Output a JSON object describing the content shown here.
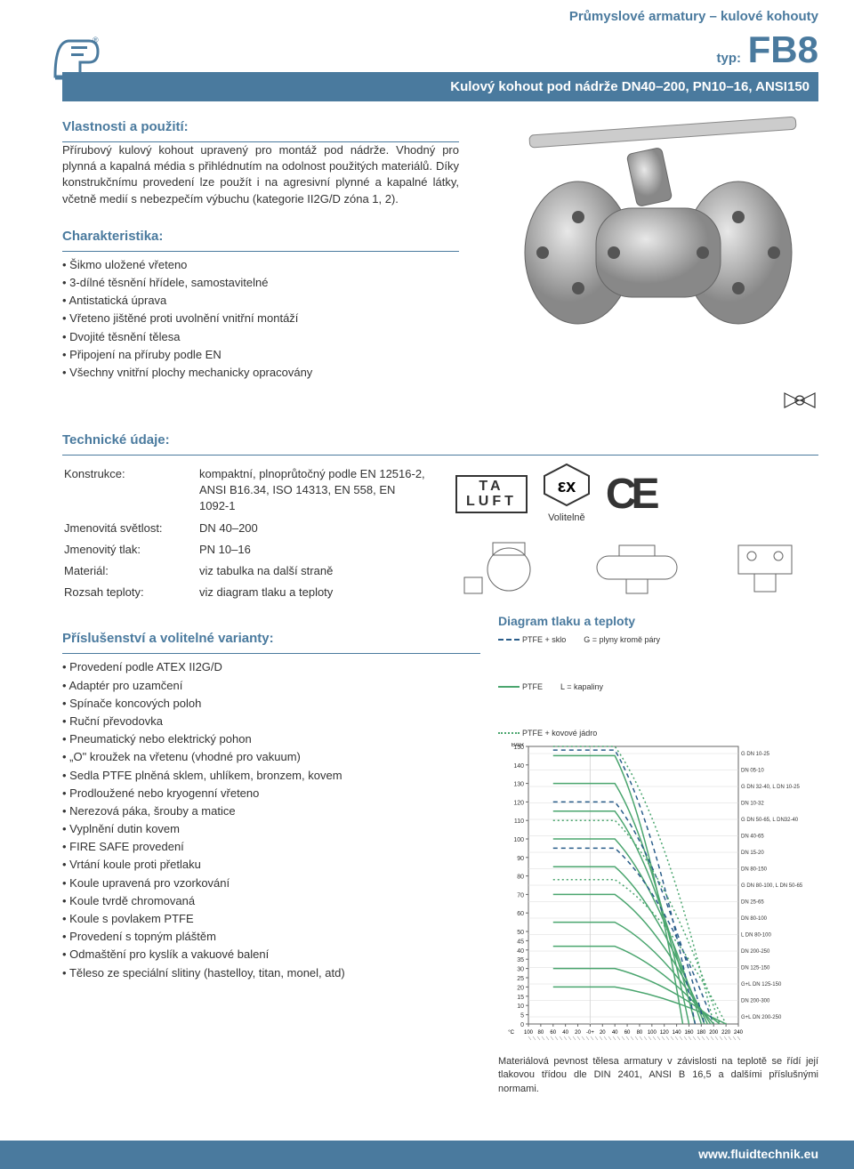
{
  "header": {
    "category": "Průmyslové armatury – kulové kohouty",
    "typ_label": "typ:",
    "typ_code": "FB8",
    "bar_text": "Kulový kohout pod nádrže DN40–200, PN10–16, ANSI150"
  },
  "properties": {
    "heading": "Vlastnosti a použití:",
    "body": "Přírubový kulový kohout upravený pro montáž pod nádrže. Vhodný pro plynná a kapalná média s přihlédnutím na odolnost použitých materiálů. Díky konstrukčnímu provedení lze použít i na agresivní plynné a kapalné látky, včetně medií s nebezpečím výbuchu (kategorie II2G/D zóna 1, 2)."
  },
  "characteristics": {
    "heading": "Charakteristika:",
    "items": [
      "Šikmo uložené vřeteno",
      "3-dílné těsnění hřídele, samostavitelné",
      "Antistatická úprava",
      "Vřeteno jištěné proti uvolnění vnitřní montáží",
      "Dvojité těsnění tělesa",
      "Připojení na příruby podle EN",
      "Všechny vnitřní plochy mechanicky opracovány"
    ]
  },
  "technical": {
    "heading": "Technické údaje:",
    "rows": [
      {
        "label": "Konstrukce:",
        "value": "kompaktní, plnoprůtočný podle EN 12516-2, ANSI B16.34, ISO 14313, EN 558, EN 1092-1"
      },
      {
        "label": "Jmenovitá světlost:",
        "value": "DN 40–200"
      },
      {
        "label": "Jmenovitý tlak:",
        "value": "PN 10–16"
      },
      {
        "label": "Materiál:",
        "value": "viz tabulka na další straně"
      },
      {
        "label": "Rozsah teploty:",
        "value": "viz diagram tlaku a teploty"
      }
    ],
    "ta_luft_line1": "TA",
    "ta_luft_line2": "LUFT",
    "volitelne": "Volitelně"
  },
  "accessories": {
    "heading": "Příslušenství a volitelné varianty:",
    "items": [
      "Provedení podle ATEX II2G/D",
      "Adaptér pro uzamčení",
      "Spínače koncových poloh",
      "Ruční převodovka",
      "Pneumatický nebo elektrický pohon",
      "„O\" kroužek na vřetenu (vhodné pro vakuum)",
      "Sedla PTFE plněná sklem, uhlíkem, bronzem, kovem",
      "Prodloužené nebo kryogenní vřeteno",
      "Nerezová páka, šrouby a matice",
      "Vyplnění dutin kovem",
      "FIRE SAFE provedení",
      "Vrtání koule proti přetlaku",
      "Koule upravená pro vzorkování",
      "Koule tvrdě chromovaná",
      "Koule s povlakem PTFE",
      "Provedení s topným pláštěm",
      "Odmaštění pro kyslík a vakuové balení",
      "Těleso ze speciální slitiny (hastelloy, titan, monel, atd)"
    ]
  },
  "chart": {
    "heading": "Diagram tlaku a teploty",
    "legend": {
      "ptfe_sklo": "PTFE + sklo",
      "ptfe": "PTFE",
      "ptfe_kov": "PTFE + kovové jádro",
      "g": "G = plyny kromě páry",
      "l": "L = kapaliny"
    },
    "y_label": "BAR",
    "y_ticks": [
      150,
      140,
      130,
      120,
      110,
      100,
      90,
      80,
      70,
      60,
      50,
      45,
      40,
      35,
      30,
      25,
      20,
      15,
      10,
      5,
      0
    ],
    "x_label": "°C",
    "x_ticks_left": [
      100,
      80,
      60,
      40,
      20
    ],
    "x_zero": "-0+",
    "x_ticks_right": [
      20,
      40,
      60,
      80,
      100,
      120,
      140,
      160,
      180,
      200,
      220,
      240
    ],
    "right_labels": [
      "G DN 10-25",
      "DN 05-10",
      "G DN 32-40, L DN 10-25",
      "DN 10-32",
      "G DN 50-65, L DN32-40",
      "DN 40-65",
      "DN 15-20",
      "DN 80-150",
      "G DN 80-100, L DN 50-65",
      "DN 25-65",
      "DN 80-100",
      "L DN 80-100",
      "DN 200-250",
      "DN 125-150",
      "G+L DN 125-150",
      "DN 200-300",
      "G+L DN 200-250"
    ],
    "note": "Materiálová pevnost tělesa armatury v závislosti na teplotě se řídí její tlakovou třídou dle DIN 2401, ANSI B 16,5 a dalšími příslušnými normami.",
    "colors": {
      "axis": "#666666",
      "grid": "#d8d8d8",
      "solid": "#4aa56e",
      "dashed": "#2a5d8a",
      "dotted": "#4aa56e"
    }
  },
  "footer": {
    "url": "www.fluidtechnik.eu"
  }
}
